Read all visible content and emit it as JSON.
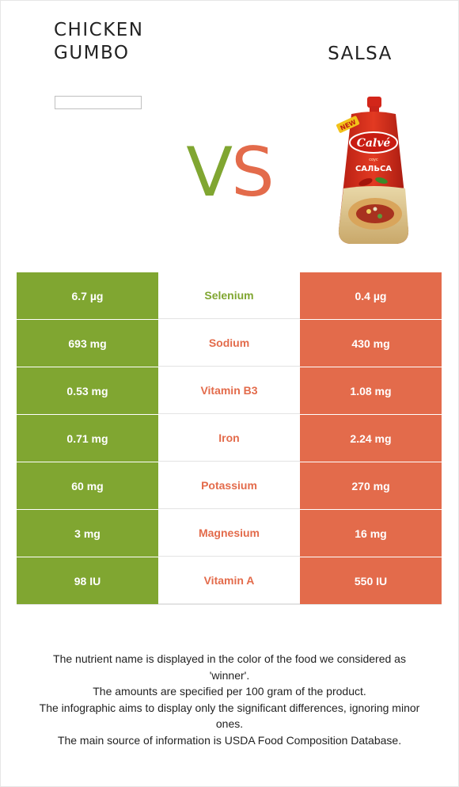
{
  "header": {
    "left_food_line1": "CHICKEN",
    "left_food_line2": "GUMBO",
    "right_food": "SALSA",
    "vs_v": "V",
    "vs_s": "S"
  },
  "colors": {
    "winner_left": "#80a631",
    "winner_right": "#e36b4b"
  },
  "product_image": {
    "brand": "Calvé",
    "badge": "NEW",
    "subtitle_small": "соус",
    "subtitle": "САЛЬСА"
  },
  "table": {
    "rows": [
      {
        "left": "6.7 µg",
        "nutrient": "Selenium",
        "right": "0.4 µg",
        "winner_color": "#80a631"
      },
      {
        "left": "693 mg",
        "nutrient": "Sodium",
        "right": "430 mg",
        "winner_color": "#e36b4b"
      },
      {
        "left": "0.53 mg",
        "nutrient": "Vitamin B3",
        "right": "1.08 mg",
        "winner_color": "#e36b4b"
      },
      {
        "left": "0.71 mg",
        "nutrient": "Iron",
        "right": "2.24 mg",
        "winner_color": "#e36b4b"
      },
      {
        "left": "60 mg",
        "nutrient": "Potassium",
        "right": "270 mg",
        "winner_color": "#e36b4b"
      },
      {
        "left": "3 mg",
        "nutrient": "Magnesium",
        "right": "16 mg",
        "winner_color": "#e36b4b"
      },
      {
        "left": "98 IU",
        "nutrient": "Vitamin A",
        "right": "550 IU",
        "winner_color": "#e36b4b"
      }
    ]
  },
  "footnote": {
    "line1": "The nutrient name is displayed in the color of the food we considered as",
    "line2": "'winner'.",
    "line3": "The amounts are specified per 100 gram of the product.",
    "line4": "The infographic aims to display only the significant differences, ignoring minor",
    "line5": "ones.",
    "line6": "The main source of information is USDA Food Composition Database."
  }
}
